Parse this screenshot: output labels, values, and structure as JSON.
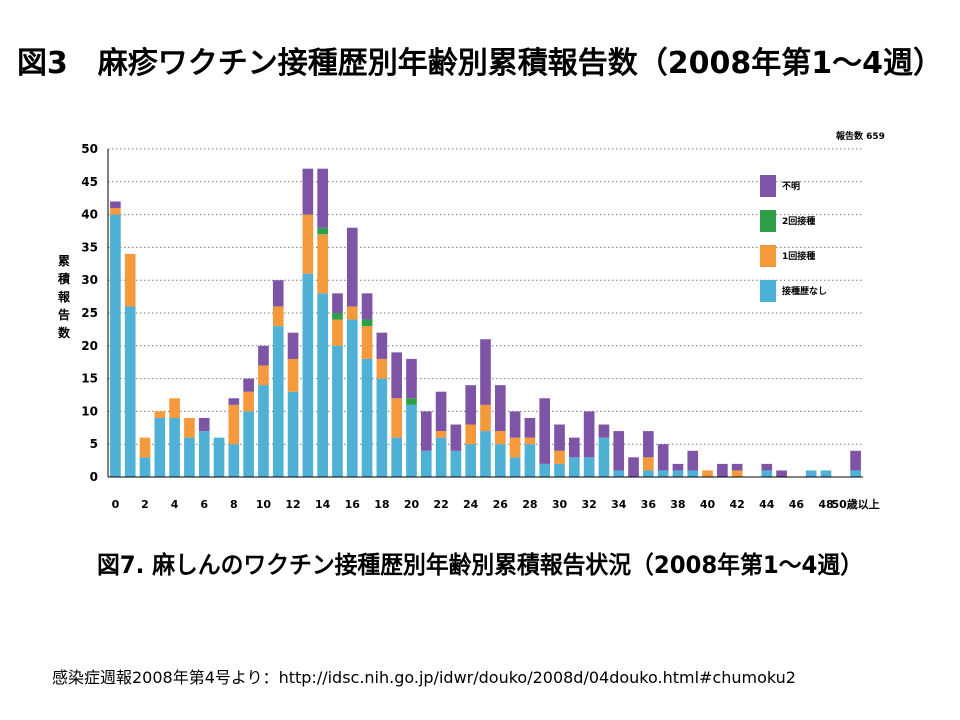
{
  "title": "図3　麻疹ワクチン接種歴別年齢別累積報告数（2008年第1～4週）",
  "caption": "図7. 麻しんのワクチン接種歴別年齢別累積報告状況（2008年第1～4週）",
  "source": "感染症週報2008年第4号より：http://idsc.nih.go.jp/idwr/douko/2008d/04douko.html#chumoku2",
  "chart_data": {
    "type": "bar",
    "stacked": true,
    "report_count_label": "報告数 659",
    "ylabel": "累積報告数",
    "ylim": [
      0,
      50
    ],
    "yticks": [
      0,
      5,
      10,
      15,
      20,
      25,
      30,
      35,
      40,
      45,
      50
    ],
    "grid": "horizontal-dotted",
    "legend_position": "right",
    "categories": [
      "0",
      "1",
      "2",
      "3",
      "4",
      "5",
      "6",
      "7",
      "8",
      "9",
      "10",
      "11",
      "12",
      "13",
      "14",
      "15",
      "16",
      "17",
      "18",
      "19",
      "20",
      "21",
      "22",
      "23",
      "24",
      "25",
      "26",
      "27",
      "28",
      "29",
      "30",
      "31",
      "32",
      "33",
      "34",
      "35",
      "36",
      "37",
      "38",
      "39",
      "40",
      "41",
      "42",
      "43",
      "44",
      "45",
      "46",
      "47",
      "48",
      "49",
      "50歳以上"
    ],
    "xtick_labels": [
      "0",
      "",
      "2",
      "",
      "4",
      "",
      "6",
      "",
      "8",
      "",
      "10",
      "",
      "12",
      "",
      "14",
      "",
      "16",
      "",
      "18",
      "",
      "20",
      "",
      "22",
      "",
      "24",
      "",
      "26",
      "",
      "28",
      "",
      "30",
      "",
      "32",
      "",
      "34",
      "",
      "36",
      "",
      "38",
      "",
      "40",
      "",
      "42",
      "",
      "44",
      "",
      "46",
      "",
      "48",
      "",
      "50歳以上"
    ],
    "series": [
      {
        "name": "接種歴なし",
        "color": "#4fb1d6",
        "values": [
          40,
          26,
          3,
          9,
          9,
          6,
          7,
          6,
          5,
          10,
          14,
          23,
          13,
          31,
          28,
          20,
          24,
          18,
          15,
          6,
          11,
          4,
          6,
          4,
          5,
          7,
          5,
          3,
          5,
          2,
          2,
          3,
          3,
          6,
          1,
          0,
          1,
          1,
          1,
          1,
          0,
          0,
          0,
          0,
          1,
          0,
          0,
          1,
          1,
          0,
          1
        ]
      },
      {
        "name": "1回接種",
        "color": "#f59a3c",
        "values": [
          1,
          8,
          3,
          1,
          3,
          3,
          0,
          0,
          6,
          3,
          3,
          3,
          5,
          9,
          9,
          4,
          2,
          5,
          3,
          6,
          0,
          0,
          1,
          0,
          3,
          4,
          2,
          3,
          1,
          0,
          2,
          0,
          0,
          0,
          0,
          0,
          2,
          0,
          0,
          0,
          1,
          0,
          1,
          0,
          0,
          0,
          0,
          0,
          0,
          0,
          0
        ]
      },
      {
        "name": "2回接種",
        "color": "#2e9e48",
        "values": [
          0,
          0,
          0,
          0,
          0,
          0,
          0,
          0,
          0,
          0,
          0,
          0,
          0,
          0,
          1,
          1,
          0,
          1,
          0,
          0,
          1,
          0,
          0,
          0,
          0,
          0,
          0,
          0,
          0,
          0,
          0,
          0,
          0,
          0,
          0,
          0,
          0,
          0,
          0,
          0,
          0,
          0,
          0,
          0,
          0,
          0,
          0,
          0,
          0,
          0,
          0
        ]
      },
      {
        "name": "不明",
        "color": "#7e55a6",
        "values": [
          1,
          0,
          0,
          0,
          0,
          0,
          2,
          0,
          1,
          2,
          3,
          4,
          4,
          7,
          9,
          3,
          12,
          4,
          4,
          7,
          6,
          6,
          6,
          4,
          6,
          10,
          7,
          4,
          3,
          10,
          4,
          3,
          7,
          2,
          6,
          3,
          4,
          4,
          1,
          3,
          0,
          2,
          1,
          0,
          1,
          1,
          0,
          0,
          0,
          0,
          3
        ]
      }
    ],
    "legend_order": [
      "不明",
      "2回接種",
      "1回接種",
      "接種歴なし"
    ]
  }
}
